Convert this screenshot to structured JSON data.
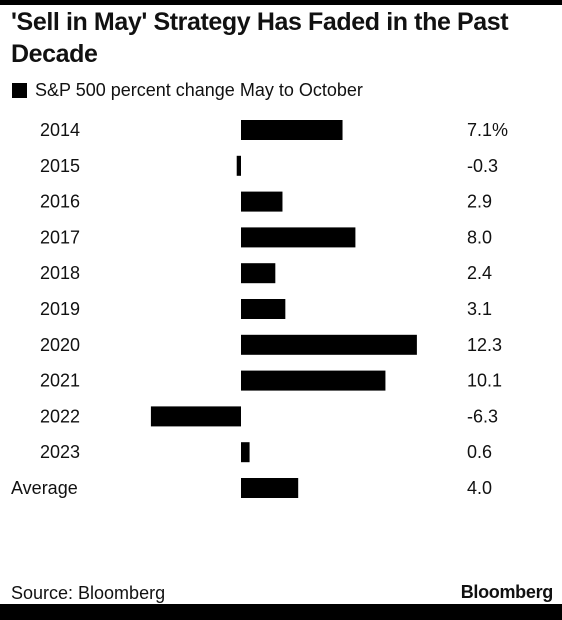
{
  "title": "'Sell in May' Strategy Has Faded in the Past Decade",
  "source": "Source: Bloomberg",
  "brand": "Bloomberg",
  "chart_data": {
    "type": "bar",
    "orientation": "horizontal",
    "series": [
      {
        "name": "S&P 500 percent change May to October",
        "color": "#000000",
        "values": [
          7.1,
          -0.3,
          2.9,
          8.0,
          2.4,
          3.1,
          12.3,
          10.1,
          -6.3,
          0.6,
          4.0
        ]
      }
    ],
    "categories": [
      "2014",
      "2015",
      "2016",
      "2017",
      "2018",
      "2019",
      "2020",
      "2021",
      "2022",
      "2023",
      "Average"
    ],
    "value_labels": [
      "7.1%",
      "-0.3",
      "2.9",
      "8.0",
      "2.4",
      "3.1",
      "12.3",
      "10.1",
      "-6.3",
      "0.6",
      "4.0"
    ],
    "legend_position": "top-left",
    "grid": false
  }
}
